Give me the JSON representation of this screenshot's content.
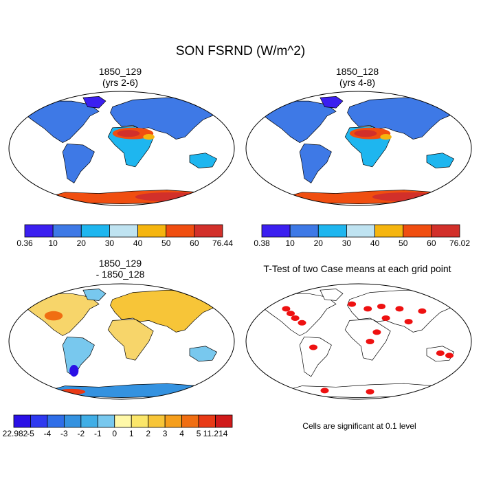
{
  "figure": {
    "title": "SON FSRND (W/m^2)",
    "note": "Cells are significant at 0.1 level"
  },
  "panels": [
    {
      "id": "case1",
      "title_line1": "1850_129",
      "title_line2": "(yrs 2-6)",
      "colorbar": {
        "colors": [
          "#3b1ff0",
          "#3e79e6",
          "#1eb6ef",
          "#bfe3f1",
          "#f5b50f",
          "#f04e10",
          "#d2302a"
        ],
        "labels": [
          "0.36",
          "10",
          "20",
          "30",
          "40",
          "50",
          "60",
          "76.44"
        ]
      }
    },
    {
      "id": "case2",
      "title_line1": "1850_128",
      "title_line2": "(yrs 4-8)",
      "colorbar": {
        "colors": [
          "#3b1ff0",
          "#3e79e6",
          "#1eb6ef",
          "#bfe3f1",
          "#f5b50f",
          "#f04e10",
          "#d2302a"
        ],
        "labels": [
          "0.38",
          "10",
          "20",
          "30",
          "40",
          "50",
          "60",
          "76.02"
        ]
      }
    },
    {
      "id": "diff",
      "title_line1": "1850_129",
      "title_line2": "- 1850_128",
      "colorbar": {
        "colors": [
          "#2a10e6",
          "#2e39f0",
          "#2f6ee8",
          "#3492e0",
          "#40aee6",
          "#78c8ee",
          "#fff8a8",
          "#fbe66a",
          "#f7c538",
          "#f59e1c",
          "#f06e12",
          "#e83a16",
          "#d01a1a"
        ],
        "labels": [
          "-22.982",
          "-5",
          "-4",
          "-3",
          "-2",
          "-1",
          "0",
          "1",
          "2",
          "3",
          "4",
          "5",
          "11.214"
        ]
      }
    },
    {
      "id": "ttest",
      "title_line1": "T-Test of two Case means at each grid point",
      "title_line2": ""
    }
  ]
}
